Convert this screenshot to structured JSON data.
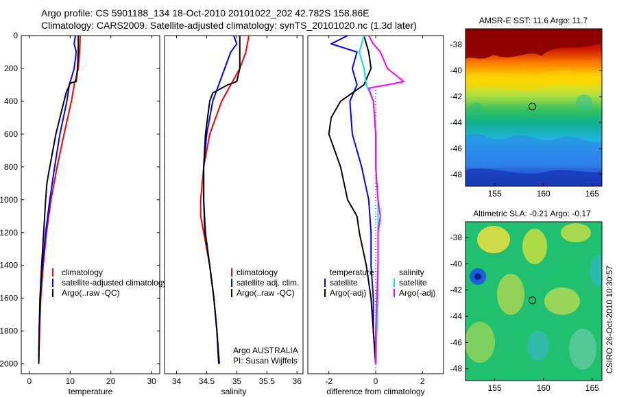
{
  "header": {
    "line1": "Argo profile: CS 5901188_134 18-Oct-2010 20101022_202 42.782S 158.86E",
    "line2": "Climatology: CARS2009. Satellite-adjusted climatology: synTS_20101020.nc (1.3d later)"
  },
  "chart_data": [
    {
      "type": "line",
      "id": "temperature",
      "xlabel": "temperature",
      "ylabel": "",
      "xlim": [
        -2,
        32
      ],
      "ylim": [
        0,
        2060
      ],
      "y_reversed": true,
      "xticks": [
        0,
        10,
        20,
        30
      ],
      "xtick_labels": [
        "0",
        "10",
        "20",
        "30"
      ],
      "yticks": [
        0,
        200,
        400,
        600,
        800,
        1000,
        1200,
        1400,
        1600,
        1800,
        2000
      ],
      "ytick_labels": [
        "0",
        "200",
        "400",
        "600",
        "800",
        "1000",
        "1200",
        "1400",
        "1600",
        "1800",
        "2000"
      ],
      "legend": [
        "climatology",
        "satellite-adjusted climatology",
        "Argo(..raw -QC)"
      ],
      "series": [
        {
          "name": "climatology",
          "color": "#ff0000",
          "depth": [
            0,
            100,
            200,
            300,
            400,
            600,
            800,
            1000,
            1200,
            1400,
            1600,
            1800,
            2000
          ],
          "values": [
            12.5,
            12.3,
            12.0,
            11.0,
            10.3,
            8.5,
            6.8,
            5.3,
            4.2,
            3.4,
            2.8,
            2.5,
            2.3
          ]
        },
        {
          "name": "satellite-adjusted climatology",
          "color": "#0000ff",
          "depth": [
            0,
            50,
            100,
            200,
            300,
            400,
            600,
            800,
            1000,
            1200,
            1400,
            1600,
            1800,
            2000
          ],
          "values": [
            11.3,
            11.0,
            11.5,
            11.0,
            9.8,
            9.2,
            7.5,
            6.2,
            5.0,
            4.0,
            3.2,
            2.7,
            2.4,
            2.3
          ]
        },
        {
          "name": "Argo(..raw -QC)",
          "color": "#000000",
          "depth": [
            0,
            100,
            200,
            280,
            290,
            350,
            400,
            600,
            800,
            900,
            1000,
            1200,
            1400,
            1600,
            1800,
            2000
          ],
          "values": [
            12.0,
            12.0,
            11.8,
            11.5,
            10.0,
            9.0,
            8.5,
            6.5,
            5.0,
            4.3,
            4.0,
            3.5,
            3.0,
            2.6,
            2.4,
            2.3
          ]
        }
      ]
    },
    {
      "type": "line",
      "id": "salinity",
      "xlabel": "salinity",
      "ylabel": "",
      "xlim": [
        33.8,
        36.1
      ],
      "ylim": [
        0,
        2060
      ],
      "y_reversed": true,
      "xticks": [
        34,
        34.5,
        35,
        35.5,
        36
      ],
      "xtick_labels": [
        "34",
        "34.5",
        "35",
        "35.5",
        "36"
      ],
      "legend": [
        "climatology",
        "satellite adj. clim.",
        "Argo(..raw -QC)"
      ],
      "annotations": [
        "Argo AUSTRALIA",
        "PI: Susan Wijffels"
      ],
      "series": [
        {
          "name": "climatology",
          "color": "#ff0000",
          "depth": [
            0,
            100,
            200,
            300,
            400,
            600,
            800,
            1000,
            1100,
            1200,
            1400,
            1600,
            1800,
            2000
          ],
          "values": [
            35.2,
            35.15,
            35.05,
            34.9,
            34.75,
            34.55,
            34.45,
            34.4,
            34.4,
            34.45,
            34.55,
            34.62,
            34.67,
            34.71
          ]
        },
        {
          "name": "satellite adj. clim.",
          "color": "#0000ff",
          "depth": [
            0,
            50,
            100,
            200,
            300,
            400,
            600,
            800,
            1000,
            1200,
            1400,
            1600,
            1800,
            2000
          ],
          "values": [
            34.95,
            35.0,
            34.9,
            34.8,
            34.7,
            34.6,
            34.5,
            34.45,
            34.45,
            34.48,
            34.55,
            34.62,
            34.67,
            34.71
          ]
        },
        {
          "name": "Argo(..raw -QC)",
          "color": "#000000",
          "depth": [
            0,
            100,
            200,
            280,
            300,
            350,
            400,
            600,
            800,
            1000,
            1200,
            1400,
            1600,
            1800,
            2000
          ],
          "values": [
            35.05,
            35.05,
            35.05,
            35.0,
            34.85,
            34.6,
            34.55,
            34.48,
            34.45,
            34.45,
            34.47,
            34.55,
            34.62,
            34.67,
            34.7
          ]
        }
      ]
    },
    {
      "type": "line",
      "id": "difference",
      "xlabel": "difference from climatology",
      "ylabel": "",
      "xlim": [
        -2.9,
        2.9
      ],
      "ylim": [
        0,
        2060
      ],
      "y_reversed": true,
      "xticks": [
        -2,
        0,
        2
      ],
      "xtick_labels": [
        "-2",
        "0",
        "2"
      ],
      "zero_line": true,
      "legend_groups": [
        {
          "title": "temperature",
          "entries": [
            "satellite",
            "Argo(-adj)"
          ]
        },
        {
          "title": "salinity",
          "entries": [
            "satellite",
            "Argo(-adj)"
          ]
        }
      ],
      "series": [
        {
          "name": "temperature satellite",
          "color": "#0000ff",
          "depth": [
            0,
            50,
            100,
            200,
            300,
            400,
            600,
            800,
            1000,
            1200,
            1400,
            1600,
            1800,
            2000
          ],
          "values": [
            -1.2,
            -1.9,
            -0.8,
            -1.0,
            -0.8,
            -1.1,
            -1.0,
            -0.6,
            -0.3,
            -0.2,
            -0.2,
            -0.1,
            -0.1,
            0.0
          ]
        },
        {
          "name": "temperature Argo(-adj)",
          "color": "#000000",
          "depth": [
            0,
            50,
            100,
            200,
            300,
            400,
            500,
            600,
            800,
            1000,
            1100,
            1200,
            1400,
            1600,
            1800,
            2000
          ],
          "values": [
            -0.5,
            -0.4,
            -0.3,
            -0.2,
            -0.5,
            -1.5,
            -1.9,
            -2.0,
            -1.5,
            -1.2,
            -0.8,
            -0.7,
            -0.4,
            -0.2,
            -0.1,
            0.0
          ]
        },
        {
          "name": "salinity satellite",
          "color": "#00e5ee",
          "depth": [
            0,
            100,
            200,
            300,
            400,
            600,
            800,
            1000,
            1200,
            1400,
            1600,
            1800,
            2000
          ],
          "values": [
            -0.5,
            -0.7,
            -0.5,
            -0.4,
            -0.1,
            0.0,
            0.0,
            0.1,
            0.1,
            0.1,
            0.1,
            0.05,
            0.0
          ]
        },
        {
          "name": "salinity Argo(-adj)",
          "color": "#ff00ff",
          "depth": [
            0,
            50,
            100,
            200,
            280,
            300,
            320,
            400,
            600,
            800,
            1000,
            1100,
            1200,
            1400,
            1600,
            1800,
            2000
          ],
          "values": [
            -0.3,
            -0.1,
            0.2,
            0.5,
            1.2,
            0.5,
            -0.3,
            -0.1,
            0.0,
            0.0,
            0.1,
            0.2,
            0.1,
            0.1,
            0.05,
            0.0,
            0.0
          ]
        }
      ]
    },
    {
      "type": "heatmap",
      "id": "sst_map",
      "title": "AMSR-E SST: 11.6 Argo: 11.7",
      "xlim": [
        152,
        166
      ],
      "ylim": [
        -48.9,
        -36.8
      ],
      "xticks": [
        155,
        160,
        165
      ],
      "xtick_labels": [
        "155",
        "160",
        "165"
      ],
      "yticks": [
        -38,
        -40,
        -42,
        -44,
        -46,
        -48
      ],
      "ytick_labels": [
        "-38",
        "-40",
        "-42",
        "-44",
        "-46",
        "-48"
      ],
      "ytick_side": "right",
      "marker": {
        "lon": 158.86,
        "lat": -42.782
      }
    },
    {
      "type": "heatmap",
      "id": "sla_map",
      "title": "Altimetric SLA: -0.21 Argo: -0.17",
      "xlim": [
        152,
        166
      ],
      "ylim": [
        -48.9,
        -36.8
      ],
      "xticks": [
        155,
        160,
        165
      ],
      "xtick_labels": [
        "155",
        "160",
        "165"
      ],
      "yticks": [
        -38,
        -40,
        -42,
        -44,
        -46,
        -48
      ],
      "ytick_labels": [
        "-38",
        "-40",
        "-42",
        "-44",
        "-46",
        "-48"
      ],
      "ytick_side": "left",
      "marker": {
        "lon": 158.86,
        "lat": -42.782
      },
      "side_label": "CSIRO 26-Oct-2010 10:30:57"
    }
  ]
}
